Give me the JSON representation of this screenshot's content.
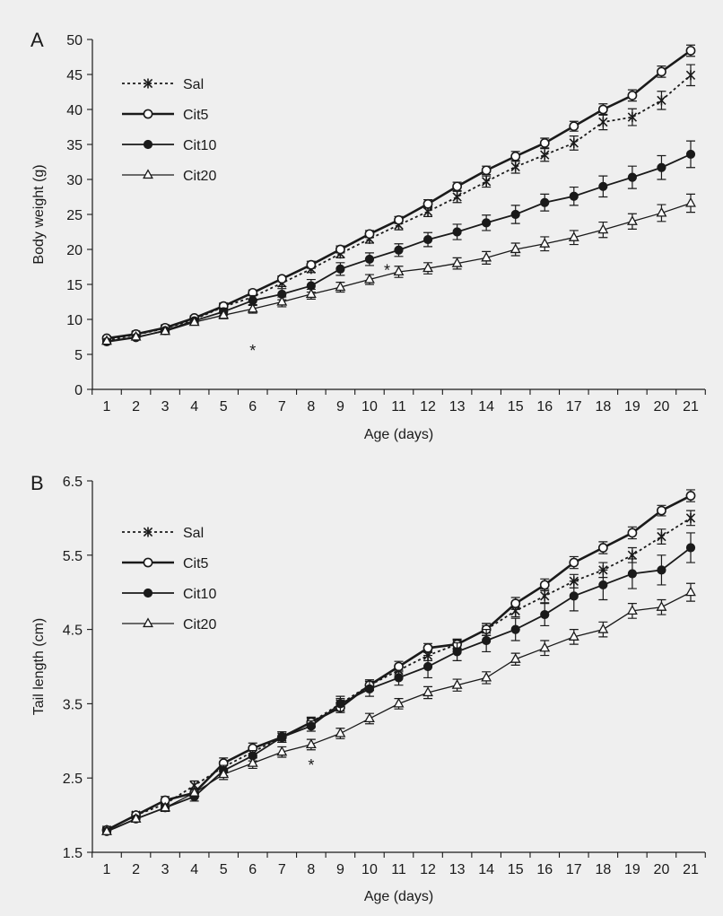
{
  "chart_data": [
    {
      "panel_label": "A",
      "type": "line",
      "xlabel": "Age (days)",
      "ylabel": "Body weight (g)",
      "x": [
        1,
        2,
        3,
        4,
        5,
        6,
        7,
        8,
        9,
        10,
        11,
        12,
        13,
        14,
        15,
        16,
        17,
        18,
        19,
        20,
        21
      ],
      "ylim": [
        0,
        50
      ],
      "yticks": [
        0,
        5,
        10,
        15,
        20,
        25,
        30,
        35,
        40,
        45,
        50
      ],
      "grid": false,
      "legend_position": "top-left",
      "annotations": [
        {
          "text": "*",
          "x": 6,
          "y": 6
        },
        {
          "text": "*",
          "x": 10.6,
          "y": 17.5
        }
      ],
      "series": [
        {
          "name": "Sal",
          "style": "dotted",
          "marker": "star",
          "values": [
            7.0,
            7.8,
            8.7,
            10.0,
            11.8,
            13.2,
            15.2,
            17.2,
            19.4,
            21.5,
            23.5,
            25.4,
            27.5,
            29.7,
            31.8,
            33.5,
            35.2,
            38.2,
            38.9,
            41.3,
            44.9
          ],
          "errors": [
            0.3,
            0.3,
            0.3,
            0.4,
            0.4,
            0.5,
            0.5,
            0.5,
            0.6,
            0.6,
            0.7,
            0.7,
            0.8,
            0.8,
            0.9,
            0.9,
            1.0,
            1.1,
            1.2,
            1.3,
            1.5
          ]
        },
        {
          "name": "Cit5",
          "style": "bold",
          "marker": "open-circle",
          "values": [
            7.3,
            7.9,
            8.8,
            10.2,
            11.9,
            13.8,
            15.8,
            17.8,
            20.0,
            22.2,
            24.2,
            26.5,
            29.0,
            31.3,
            33.3,
            35.2,
            37.6,
            40.0,
            42.0,
            45.4,
            48.4
          ],
          "errors": [
            0.3,
            0.3,
            0.3,
            0.3,
            0.4,
            0.4,
            0.4,
            0.5,
            0.5,
            0.5,
            0.5,
            0.6,
            0.6,
            0.6,
            0.7,
            0.7,
            0.7,
            0.8,
            0.8,
            0.8,
            0.8
          ]
        },
        {
          "name": "Cit10",
          "style": "solid",
          "marker": "filled-circle",
          "values": [
            6.8,
            7.4,
            8.4,
            9.8,
            11.1,
            12.7,
            13.6,
            14.8,
            17.2,
            18.6,
            19.9,
            21.4,
            22.5,
            23.8,
            25.0,
            26.7,
            27.6,
            29.0,
            30.3,
            31.7,
            33.6
          ],
          "errors": [
            0.3,
            0.3,
            0.3,
            0.4,
            0.5,
            0.7,
            0.8,
            0.9,
            0.9,
            0.9,
            0.9,
            1.0,
            1.1,
            1.1,
            1.3,
            1.2,
            1.3,
            1.5,
            1.6,
            1.7,
            1.9
          ]
        },
        {
          "name": "Cit20",
          "style": "thin",
          "marker": "open-triangle",
          "values": [
            6.9,
            7.5,
            8.3,
            9.6,
            10.6,
            11.5,
            12.5,
            13.6,
            14.6,
            15.7,
            16.8,
            17.3,
            18.0,
            18.8,
            20.0,
            20.8,
            21.7,
            22.8,
            24.0,
            25.2,
            26.6
          ],
          "errors": [
            0.3,
            0.3,
            0.3,
            0.4,
            0.5,
            0.6,
            0.7,
            0.7,
            0.7,
            0.7,
            0.8,
            0.8,
            0.8,
            0.9,
            0.9,
            1.0,
            1.0,
            1.1,
            1.1,
            1.2,
            1.3
          ]
        }
      ]
    },
    {
      "panel_label": "B",
      "type": "line",
      "xlabel": "Age (days)",
      "ylabel": "Tail length (cm)",
      "x": [
        1,
        2,
        3,
        4,
        5,
        6,
        7,
        8,
        9,
        10,
        11,
        12,
        13,
        14,
        15,
        16,
        17,
        18,
        19,
        20,
        21
      ],
      "ylim": [
        1.5,
        6.5
      ],
      "yticks": [
        1.5,
        2.5,
        3.5,
        4.5,
        5.5,
        6.5
      ],
      "grid": false,
      "legend_position": "top-left",
      "annotations": [
        {
          "text": "*",
          "x": 8,
          "y": 2.72
        }
      ],
      "series": [
        {
          "name": "Sal",
          "style": "dotted",
          "marker": "star",
          "values": [
            1.8,
            2.0,
            2.15,
            2.4,
            2.65,
            2.85,
            3.05,
            3.25,
            3.5,
            3.75,
            3.95,
            4.15,
            4.3,
            4.5,
            4.75,
            4.95,
            5.15,
            5.3,
            5.5,
            5.75,
            6.0
          ],
          "errors": [
            0.03,
            0.04,
            0.05,
            0.06,
            0.07,
            0.07,
            0.07,
            0.07,
            0.07,
            0.07,
            0.07,
            0.07,
            0.07,
            0.08,
            0.08,
            0.09,
            0.09,
            0.1,
            0.1,
            0.1,
            0.1
          ]
        },
        {
          "name": "Cit5",
          "style": "bold",
          "marker": "open-circle",
          "values": [
            1.8,
            2.0,
            2.2,
            2.3,
            2.7,
            2.9,
            3.05,
            3.25,
            3.45,
            3.75,
            4.0,
            4.25,
            4.3,
            4.5,
            4.85,
            5.1,
            5.4,
            5.6,
            5.8,
            6.1,
            6.3
          ],
          "errors": [
            0.03,
            0.04,
            0.05,
            0.06,
            0.07,
            0.07,
            0.07,
            0.06,
            0.07,
            0.07,
            0.07,
            0.06,
            0.06,
            0.08,
            0.08,
            0.08,
            0.08,
            0.08,
            0.08,
            0.07,
            0.08
          ]
        },
        {
          "name": "Cit10",
          "style": "solid",
          "marker": "filled-circle",
          "values": [
            1.78,
            1.95,
            2.1,
            2.25,
            2.6,
            2.8,
            3.05,
            3.2,
            3.5,
            3.7,
            3.85,
            4.0,
            4.2,
            4.35,
            4.5,
            4.7,
            4.95,
            5.1,
            5.25,
            5.3,
            5.6
          ],
          "errors": [
            0.03,
            0.04,
            0.05,
            0.06,
            0.07,
            0.07,
            0.07,
            0.07,
            0.1,
            0.1,
            0.1,
            0.15,
            0.12,
            0.15,
            0.15,
            0.15,
            0.2,
            0.2,
            0.2,
            0.2,
            0.2
          ]
        },
        {
          "name": "Cit20",
          "style": "thin",
          "marker": "open-triangle",
          "values": [
            1.78,
            1.95,
            2.1,
            2.3,
            2.55,
            2.7,
            2.85,
            2.95,
            3.1,
            3.3,
            3.5,
            3.65,
            3.75,
            3.85,
            4.1,
            4.25,
            4.4,
            4.5,
            4.75,
            4.8,
            5.0
          ],
          "errors": [
            0.03,
            0.04,
            0.05,
            0.06,
            0.07,
            0.07,
            0.07,
            0.07,
            0.07,
            0.07,
            0.07,
            0.08,
            0.08,
            0.08,
            0.08,
            0.1,
            0.1,
            0.1,
            0.1,
            0.1,
            0.12
          ]
        }
      ]
    }
  ]
}
